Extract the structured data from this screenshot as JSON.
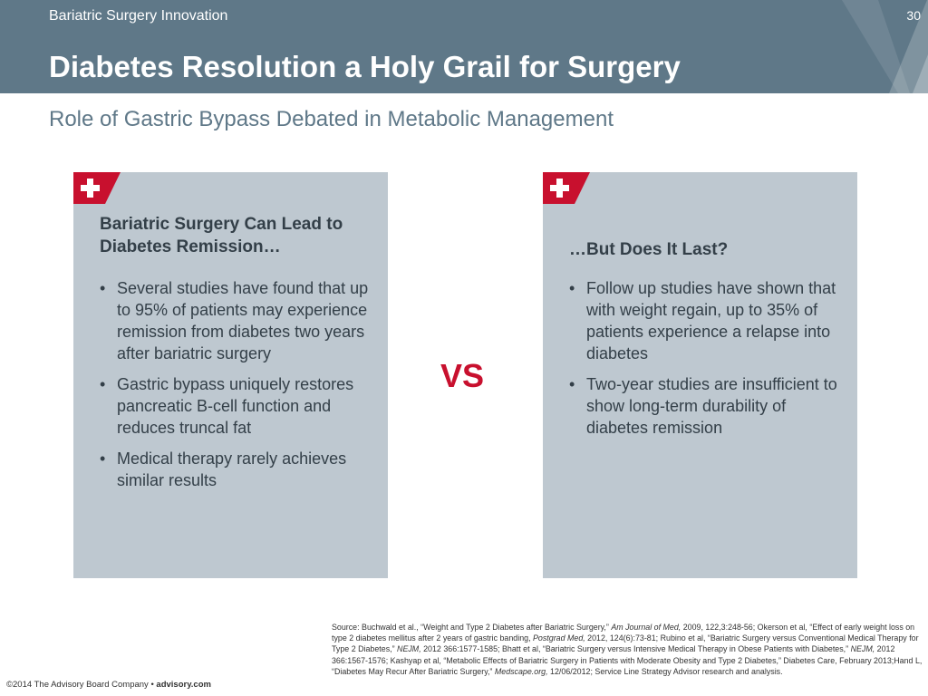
{
  "header": {
    "section_label": "Bariatric Surgery Innovation",
    "page_number": "30",
    "title": "Diabetes Resolution a Holy Grail for Surgery",
    "bg_color": "#5f7888"
  },
  "subtitle": "Role of Gastric Bypass Debated in Metabolic Management",
  "panels": [
    {
      "icon": "medical-cross-icon",
      "heading": "Bariatric Surgery Can Lead to Diabetes Remission…",
      "bullets": [
        "Several studies have found that up to 95% of patients may experience remission from diabetes two years after bariatric surgery",
        "Gastric bypass uniquely restores pancreatic B-cell function and reduces truncal fat",
        "Medical therapy rarely achieves similar results"
      ]
    },
    {
      "icon": "medical-cross-icon",
      "heading": "…But Does It Last?",
      "bullets": [
        "Follow up studies have shown that with weight regain, up to 35% of patients experience a relapse into diabetes",
        "Two-year studies are insufficient to show long-term durability of diabetes remission"
      ]
    }
  ],
  "vs_label": "VS",
  "source_note": [
    {
      "t": "Source: Buchwald et al., “Weight and Type 2 Diabetes after Bariatric Surgery,” "
    },
    {
      "t": "Am Journal of Med,",
      "i": true
    },
    {
      "t": " 2009, 122,3:248-56; Okerson et al, “Effect of early weight loss on type 2 diabetes mellitus after 2 years of gastric banding, "
    },
    {
      "t": "Postgrad Med,",
      "i": true
    },
    {
      "t": " 2012, 124(6):73-81; Rubino et al, “Bariatric Surgery versus Conventional Medical Therapy for Type 2 Diabetes,” "
    },
    {
      "t": "NEJM,",
      "i": true
    },
    {
      "t": " 2012 366:1577-1585; Bhatt et al, “Bariatric Surgery versus Intensive Medical Therapy in Obese Patients with Diabetes,” "
    },
    {
      "t": "NEJM,",
      "i": true
    },
    {
      "t": " 2012 366:1567-1576; Kashyap et al, “Metabolic Effects of Bariatric Surgery in Patients with Moderate Obesity and Type 2 Diabetes,” Diabetes Care, February 2013;Hand L, “Diabetes May Recur After Bariatric Surgery,” "
    },
    {
      "t": "Medscape.org,",
      "i": true
    },
    {
      "t": " 12/06/2012; Service Line Strategy Advisor research and analysis."
    }
  ],
  "footer": {
    "copyright": "©2014 The Advisory Board Company •",
    "site": "advisory.com"
  },
  "colors": {
    "panel_bg": "#bec8d0",
    "accent_red": "#c8102e",
    "text_dark": "#333f48"
  }
}
